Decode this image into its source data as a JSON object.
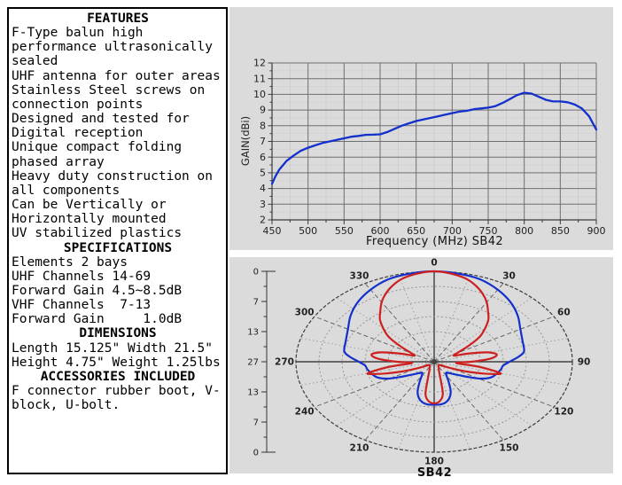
{
  "info_panel": {
    "lines": [
      {
        "text": "FEATURES",
        "heading": true
      },
      {
        "text": "F-Type balun high"
      },
      {
        "text": "performance ultrasonically"
      },
      {
        "text": "sealed"
      },
      {
        "text": "UHF antenna for outer areas"
      },
      {
        "text": "Stainless Steel screws on"
      },
      {
        "text": "connection points"
      },
      {
        "text": "Designed and tested for"
      },
      {
        "text": "Digital reception"
      },
      {
        "text": "Unique compact folding"
      },
      {
        "text": "phased array"
      },
      {
        "text": "Heavy duty construction on"
      },
      {
        "text": "all components"
      },
      {
        "text": "Can be Vertically or"
      },
      {
        "text": "Horizontally mounted"
      },
      {
        "text": "UV stabilized plastics"
      },
      {
        "text": "SPECIFICATIONS",
        "heading": true
      },
      {
        "text": "Elements 2 bays"
      },
      {
        "text": "UHF Channels 14-69"
      },
      {
        "text": "Forward Gain 4.5~8.5dB"
      },
      {
        "text": "VHF Channels  7-13"
      },
      {
        "text": "Forward Gain     1.0dB"
      },
      {
        "text": "DIMENSIONS",
        "heading": true
      },
      {
        "text": "Length 15.125\" Width 21.5\""
      },
      {
        "text": "Height 4.75\" Weight 1.25lbs"
      },
      {
        "text": "ACCESSORIES INCLUDED",
        "heading": true
      },
      {
        "text": "F connector rubber boot, V-"
      },
      {
        "text": "block, U-bolt."
      }
    ]
  },
  "colors": {
    "panel_gray": "#dbdbdb",
    "blue": "#1430cc",
    "red": "#cc2020",
    "grid_major": "#6f6f6f",
    "grid_minor": "#c9c9c9"
  },
  "chart_data": [
    {
      "type": "line",
      "title": "",
      "xlabel": "Frequency (MHz) SB42",
      "ylabel": "GAIN(dBi)",
      "xlim": [
        450,
        900
      ],
      "ylim": [
        2,
        12
      ],
      "xticks": [
        450,
        500,
        550,
        600,
        650,
        700,
        750,
        800,
        850,
        900
      ],
      "yticks": [
        2,
        3,
        4,
        5,
        6,
        7,
        8,
        9,
        10,
        11,
        12
      ],
      "grid": true,
      "legend": "none",
      "line_color": "#1430cc",
      "x": [
        450,
        455,
        460,
        470,
        480,
        490,
        500,
        510,
        520,
        530,
        540,
        550,
        560,
        570,
        580,
        590,
        600,
        610,
        620,
        630,
        640,
        650,
        660,
        670,
        680,
        690,
        700,
        710,
        720,
        730,
        740,
        750,
        760,
        770,
        780,
        790,
        800,
        810,
        820,
        830,
        840,
        850,
        860,
        870,
        880,
        890,
        900
      ],
      "y": [
        4.3,
        4.8,
        5.2,
        5.75,
        6.1,
        6.4,
        6.6,
        6.75,
        6.9,
        7.0,
        7.1,
        7.2,
        7.3,
        7.35,
        7.42,
        7.43,
        7.45,
        7.6,
        7.8,
        8.0,
        8.15,
        8.3,
        8.4,
        8.5,
        8.6,
        8.7,
        8.8,
        8.9,
        8.95,
        9.05,
        9.1,
        9.15,
        9.25,
        9.45,
        9.7,
        9.95,
        10.1,
        10.05,
        9.85,
        9.65,
        9.55,
        9.55,
        9.5,
        9.35,
        9.1,
        8.6,
        7.75
      ]
    },
    {
      "type": "polar",
      "title": "SB42",
      "angle_labels": [
        0,
        30,
        60,
        90,
        120,
        150,
        180,
        210,
        240,
        270,
        300,
        330
      ],
      "radial_scale_labels": [
        "0",
        "7",
        "13",
        "27",
        "13",
        "7",
        "0"
      ],
      "rings": 6,
      "symmetric_mirror": true,
      "series": [
        {
          "name": "blue-pattern",
          "color": "#1430cc",
          "points_deg_r": [
            [
              0,
              1.0
            ],
            [
              10,
              0.99
            ],
            [
              20,
              0.97
            ],
            [
              30,
              0.92
            ],
            [
              40,
              0.86
            ],
            [
              50,
              0.79
            ],
            [
              60,
              0.72
            ],
            [
              70,
              0.68
            ],
            [
              80,
              0.66
            ],
            [
              85,
              0.61
            ],
            [
              90,
              0.545
            ],
            [
              95,
              0.5
            ],
            [
              100,
              0.49
            ],
            [
              110,
              0.46
            ],
            [
              115,
              0.43
            ],
            [
              120,
              0.37
            ],
            [
              125,
              0.29
            ],
            [
              130,
              0.23
            ],
            [
              135,
              0.19
            ],
            [
              140,
              0.16
            ],
            [
              145,
              0.15
            ],
            [
              150,
              0.18
            ],
            [
              155,
              0.25
            ],
            [
              160,
              0.35
            ],
            [
              165,
              0.42
            ],
            [
              170,
              0.46
            ],
            [
              175,
              0.475
            ],
            [
              180,
              0.475
            ]
          ]
        },
        {
          "name": "red-pattern",
          "color": "#cc2020",
          "points_deg_r": [
            [
              0,
              1.0
            ],
            [
              5,
              0.99
            ],
            [
              10,
              0.97
            ],
            [
              15,
              0.94
            ],
            [
              20,
              0.89
            ],
            [
              25,
              0.83
            ],
            [
              30,
              0.76
            ],
            [
              35,
              0.68
            ],
            [
              40,
              0.61
            ],
            [
              45,
              0.52
            ],
            [
              50,
              0.43
            ],
            [
              55,
              0.3
            ],
            [
              60,
              0.19
            ],
            [
              65,
              0.16
            ],
            [
              70,
              0.27
            ],
            [
              75,
              0.4
            ],
            [
              80,
              0.46
            ],
            [
              85,
              0.41
            ],
            [
              90,
              0.27
            ],
            [
              95,
              0.16
            ],
            [
              100,
              0.34
            ],
            [
              105,
              0.5
            ],
            [
              110,
              0.38
            ],
            [
              115,
              0.25
            ],
            [
              120,
              0.15
            ],
            [
              125,
              0.09
            ],
            [
              130,
              0.06
            ],
            [
              135,
              0.05
            ],
            [
              140,
              0.05
            ],
            [
              145,
              0.055
            ],
            [
              150,
              0.06
            ],
            [
              155,
              0.08
            ],
            [
              160,
              0.1
            ],
            [
              165,
              0.16
            ],
            [
              170,
              0.36
            ],
            [
              175,
              0.44
            ],
            [
              180,
              0.46
            ]
          ]
        }
      ]
    }
  ]
}
